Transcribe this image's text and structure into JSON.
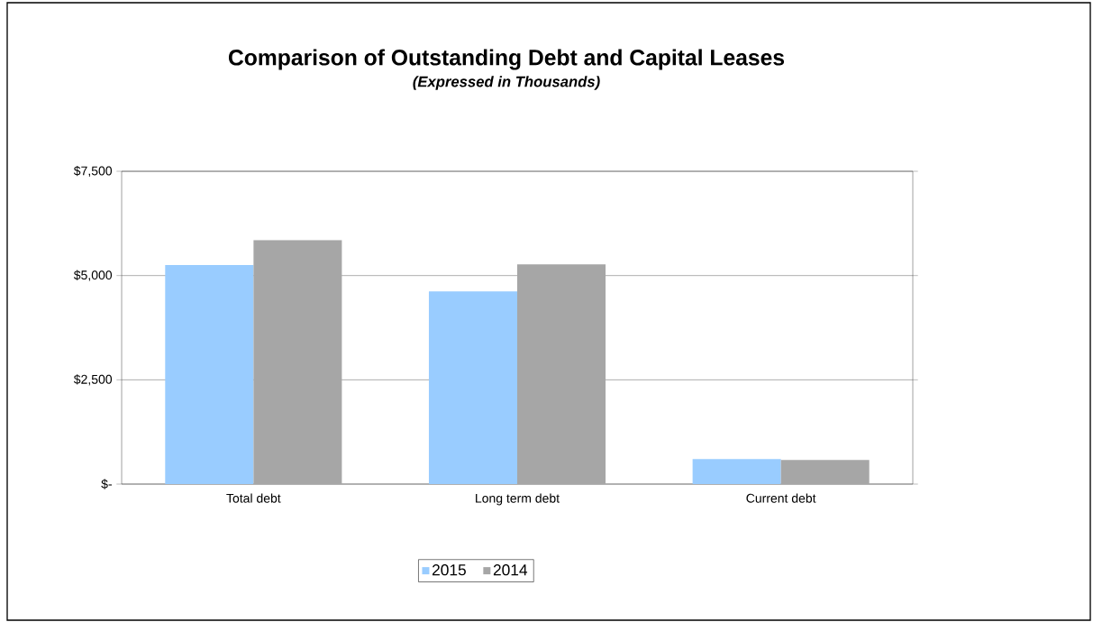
{
  "chart_data": {
    "type": "bar",
    "title": "Comparison of Outstanding Debt and Capital Leases",
    "subtitle": "(Expressed in Thousands)",
    "categories": [
      "Total debt",
      "Long term debt",
      "Current debt"
    ],
    "series": [
      {
        "name": "2015",
        "color": "#99ccff",
        "values": [
          5250,
          4620,
          600
        ]
      },
      {
        "name": "2014",
        "color": "#a6a6a6",
        "values": [
          5850,
          5270,
          580
        ]
      }
    ],
    "ylim": [
      0,
      7500
    ],
    "yticks": [
      {
        "value": 0,
        "label": "$-"
      },
      {
        "value": 2500,
        "label": "$2,500"
      },
      {
        "value": 5000,
        "label": "$5,000"
      },
      {
        "value": 7500,
        "label": "$7,500"
      }
    ],
    "grid": "y",
    "legend": "bottom"
  }
}
